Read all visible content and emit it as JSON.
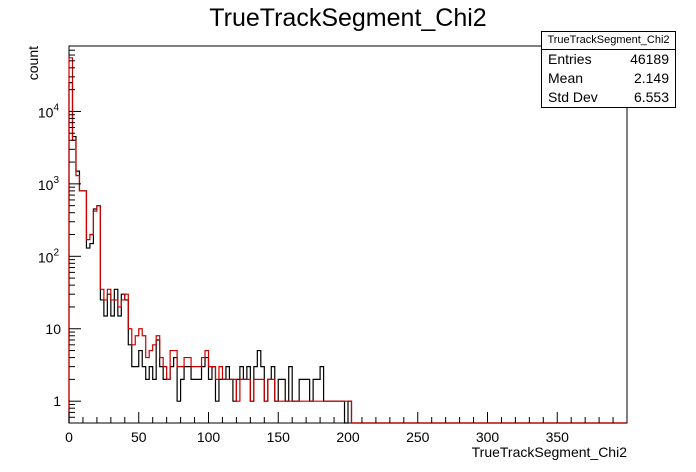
{
  "chart_data": {
    "type": "histogram",
    "title": "TrueTrackSegment_Chi2",
    "xlabel": "TrueTrackSegment_Chi2",
    "ylabel": "count",
    "xlim": [
      0,
      400
    ],
    "ylim": [
      0.5,
      80000
    ],
    "yscale": "log",
    "grid": false,
    "bin_width": 2.5,
    "x_ticks": [
      0,
      50,
      100,
      150,
      200,
      250,
      300,
      350
    ],
    "y_ticks": [
      {
        "v": 1,
        "label": "1"
      },
      {
        "v": 10,
        "label": "10"
      },
      {
        "v": 100,
        "label": "10^2"
      },
      {
        "v": 1000,
        "label": "10^3"
      },
      {
        "v": 10000,
        "label": "10^4"
      }
    ],
    "series": [
      {
        "color": "#000000",
        "values": [
          25000,
          4500,
          1500,
          800,
          800,
          130,
          150,
          450,
          500,
          25,
          15,
          30,
          15,
          35,
          15,
          30,
          25,
          6,
          3,
          3,
          5,
          3,
          2,
          3,
          2,
          7,
          3,
          2,
          2,
          3,
          4,
          1,
          2,
          3,
          3,
          2,
          2,
          2,
          3,
          4,
          2,
          3,
          1,
          2,
          2,
          3,
          2,
          1,
          2,
          3,
          2,
          3,
          1,
          3,
          5,
          3,
          1,
          2,
          3,
          1,
          2,
          2,
          1,
          3,
          1,
          1,
          2,
          2,
          2,
          1,
          2,
          2,
          3,
          1,
          1,
          1,
          1,
          1,
          1,
          0,
          1
        ]
      },
      {
        "color": "#cc0000",
        "values": [
          55000,
          4000,
          1300,
          800,
          800,
          170,
          200,
          420,
          500,
          35,
          25,
          35,
          25,
          25,
          20,
          25,
          30,
          10,
          6,
          8,
          10,
          8,
          4,
          5,
          6,
          8,
          4,
          3,
          2,
          5,
          5,
          3,
          3,
          4,
          4,
          3,
          3,
          3,
          4,
          5,
          3,
          3,
          2,
          3,
          2,
          2,
          2,
          2,
          1,
          2,
          2,
          2,
          1,
          2,
          2,
          2,
          1,
          2,
          2,
          1,
          1,
          1,
          1,
          1,
          1,
          1,
          1,
          1,
          1,
          1,
          1,
          1,
          1,
          1,
          1,
          1,
          1,
          1,
          1,
          1,
          1
        ]
      }
    ]
  },
  "stats": {
    "name": "TrueTrackSegment_Chi2",
    "entries_label": "Entries",
    "entries_value": "46189",
    "mean_label": "Mean",
    "mean_value": "2.149",
    "std_label": "Std Dev",
    "std_value": "6.553"
  }
}
